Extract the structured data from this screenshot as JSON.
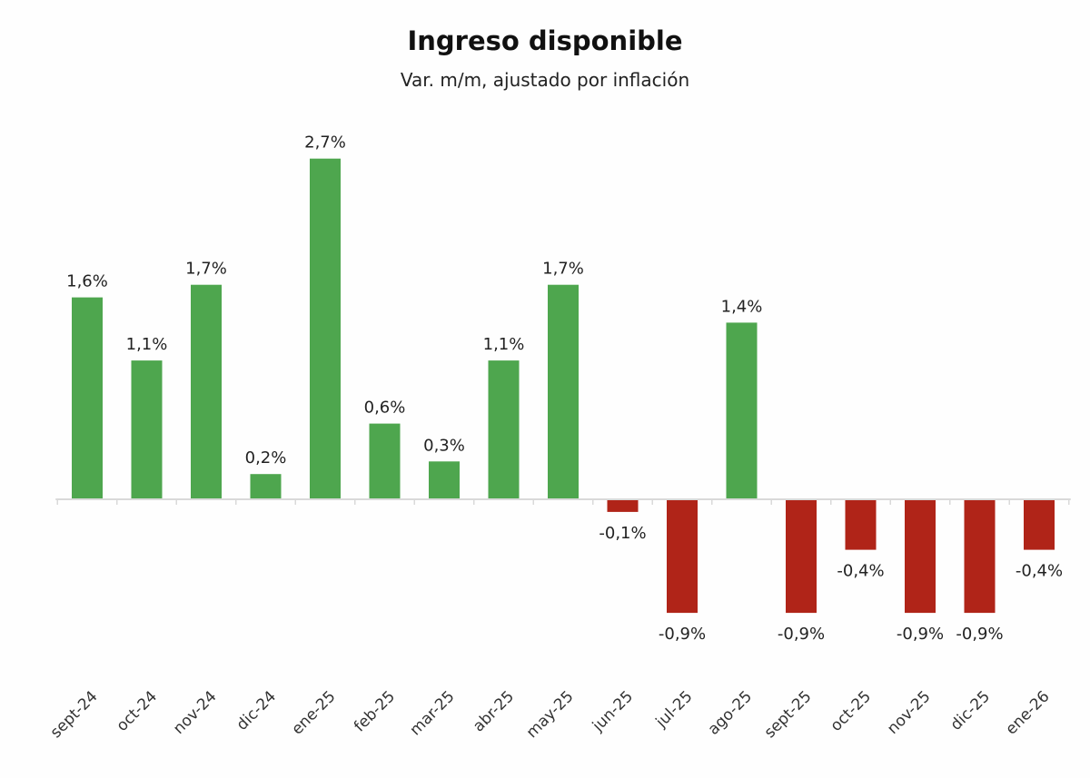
{
  "chart_data": {
    "type": "bar",
    "title": "Ingreso disponible",
    "subtitle": "Var. m/m, ajustado por inflación",
    "xlabel": "",
    "ylabel": "",
    "ylim": [
      -1.0,
      3.0
    ],
    "grid": false,
    "categories": [
      "sept-24",
      "oct-24",
      "nov-24",
      "dic-24",
      "ene-25",
      "feb-25",
      "mar-25",
      "abr-25",
      "may-25",
      "jun-25",
      "jul-25",
      "ago-25",
      "sept-25",
      "oct-25",
      "nov-25",
      "dic-25",
      "ene-26"
    ],
    "values": [
      1.6,
      1.1,
      1.7,
      0.2,
      2.7,
      0.6,
      0.3,
      1.1,
      1.7,
      -0.1,
      -0.9,
      1.4,
      -0.9,
      -0.4,
      -0.9,
      -0.9,
      -0.4
    ],
    "data_labels": [
      "1,6%",
      "1,1%",
      "1,7%",
      "0,2%",
      "2,7%",
      "0,6%",
      "0,3%",
      "1,1%",
      "1,7%",
      "-0,1%",
      "-0,9%",
      "1,4%",
      "-0,9%",
      "-0,4%",
      "-0,9%",
      "-0,9%",
      "-0,4%"
    ],
    "colors": {
      "positive": "#4ea64e",
      "negative": "#b02418"
    }
  }
}
